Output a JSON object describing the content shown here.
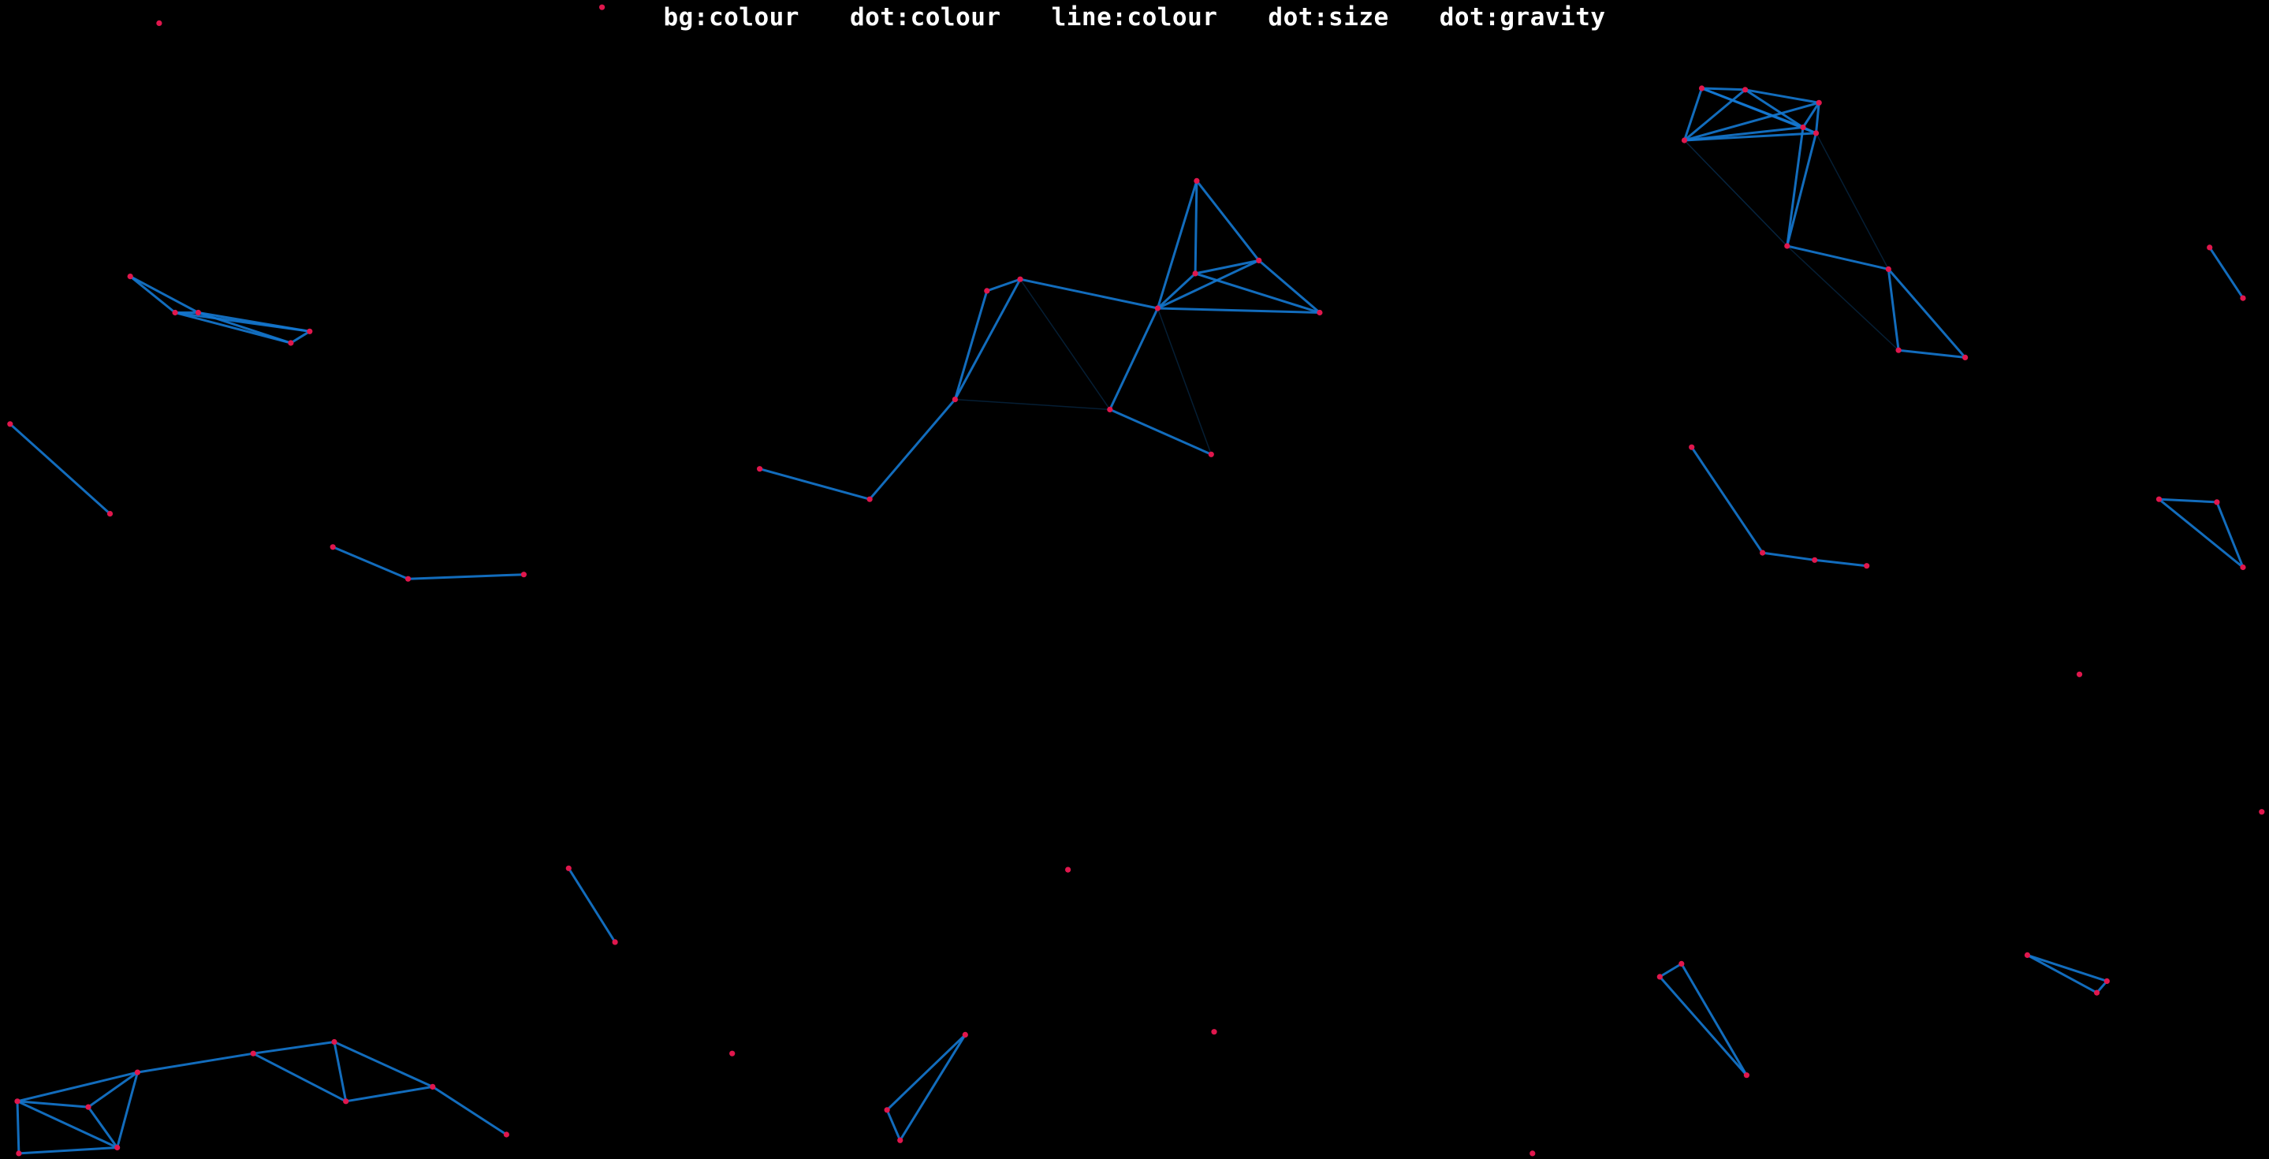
{
  "controls": {
    "bg_colour": "bg:colour",
    "dot_colour": "dot:colour",
    "line_colour": "line:colour",
    "dot_size": "dot:size",
    "dot_gravity": "dot:gravity"
  },
  "colors": {
    "background": "#000000",
    "dot": "#e0174d",
    "line": "#1478d0",
    "text": "#ffffff"
  }
}
